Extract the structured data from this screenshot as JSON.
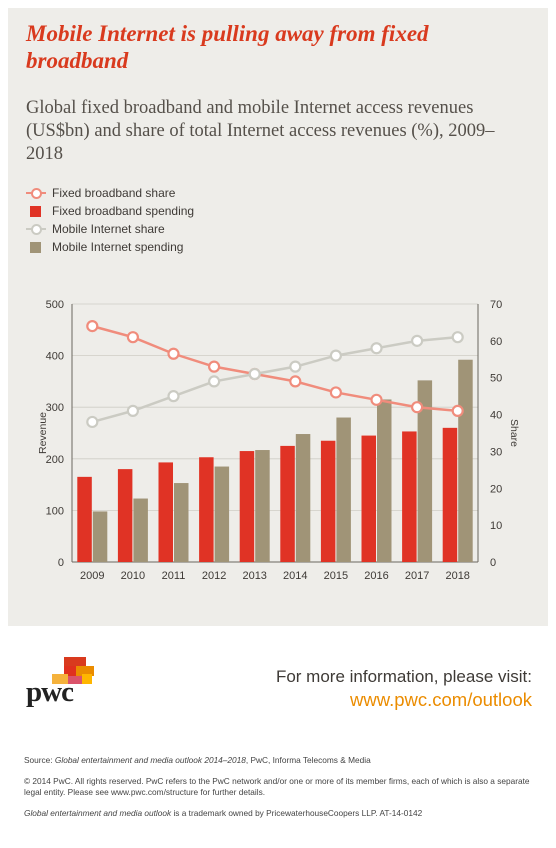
{
  "title": "Mobile Internet is pulling away from fixed broadband",
  "subtitle": "Global fixed broadband and mobile Internet access revenues (US$bn) and share of total Internet access revenues (%), 2009–2018",
  "colors": {
    "fixed_share": "#f08c7c",
    "fixed_spending": "#e03325",
    "mobile_share": "#cbcbc3",
    "mobile_spending": "#a09477",
    "title": "#d93a1e",
    "url": "#eb8c00"
  },
  "legend": [
    {
      "label": "Fixed broadband share",
      "kind": "line",
      "color_key": "fixed_share"
    },
    {
      "label": "Fixed broadband spending",
      "kind": "bar",
      "color_key": "fixed_spending"
    },
    {
      "label": "Mobile Internet share",
      "kind": "line",
      "color_key": "mobile_share"
    },
    {
      "label": "Mobile Internet spending",
      "kind": "bar",
      "color_key": "mobile_spending"
    }
  ],
  "chart_data": {
    "type": "bar",
    "categories": [
      "2009",
      "2010",
      "2011",
      "2012",
      "2013",
      "2014",
      "2015",
      "2016",
      "2017",
      "2018"
    ],
    "ylabel": "Revenue",
    "y2label": "Share",
    "ylim": [
      0,
      500
    ],
    "y2lim": [
      0,
      70
    ],
    "yticks": [
      "0",
      "100",
      "200",
      "300",
      "400",
      "500"
    ],
    "y2ticks": [
      "0",
      "10",
      "20",
      "30",
      "40",
      "50",
      "60",
      "70"
    ],
    "series": [
      {
        "name": "Fixed broadband spending",
        "kind": "bar",
        "axis": "left",
        "color_key": "fixed_spending",
        "values": [
          165,
          180,
          193,
          203,
          215,
          225,
          235,
          245,
          253,
          260
        ]
      },
      {
        "name": "Mobile Internet spending",
        "kind": "bar",
        "axis": "left",
        "color_key": "mobile_spending",
        "values": [
          98,
          123,
          153,
          185,
          217,
          248,
          280,
          315,
          352,
          392
        ]
      },
      {
        "name": "Fixed broadband share",
        "kind": "line",
        "axis": "right",
        "color_key": "fixed_share",
        "values": [
          64,
          61,
          56.5,
          53,
          51,
          49,
          46,
          44,
          42,
          41
        ]
      },
      {
        "name": "Mobile Internet share",
        "kind": "line",
        "axis": "right",
        "color_key": "mobile_share",
        "values": [
          38,
          41,
          45,
          49,
          51,
          53,
          56,
          58,
          60,
          61
        ]
      }
    ]
  },
  "footer": {
    "logo_text": "pwc",
    "info_line": "For more information, please visit:",
    "url": "www.pwc.com/outlook",
    "source_label": "Source: ",
    "source_title": "Global entertainment and media outlook 2014–2018",
    "source_rest": ", PwC, Informa Telecoms & Media",
    "copyright": "© 2014 PwC. All rights reserved. PwC refers to the PwC network and/or one or more of its member firms, each of which is also a separate legal entity. Please see www.pwc.com/structure for further details.",
    "trademark_title": "Global entertainment and media outlook",
    "trademark_rest": " is a trademark owned by PricewaterhouseCoopers LLP. AT-14-0142"
  }
}
